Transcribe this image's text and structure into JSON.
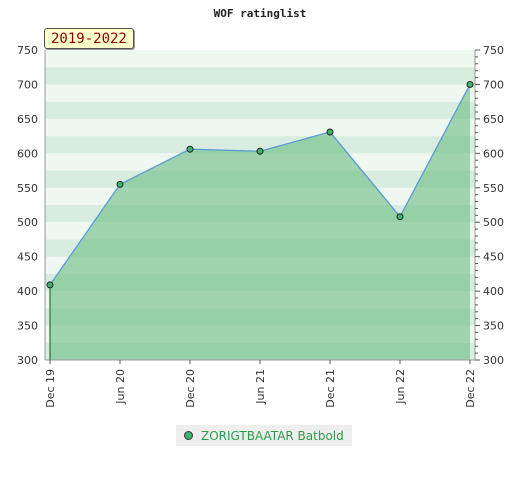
{
  "chart_data": {
    "type": "area",
    "title": "WOF ratinglist",
    "period_label": "2019-2022",
    "categories": [
      "Dec 19",
      "Jun 20",
      "Dec 20",
      "Jun 21",
      "Dec 21",
      "Jun 22",
      "Dec 22"
    ],
    "series": [
      {
        "name": "ZORIGTBAATAR Batbold",
        "values": [
          409,
          555,
          606,
          603,
          631,
          508,
          700
        ]
      }
    ],
    "ylim": [
      300,
      750
    ],
    "yticks": [
      300,
      350,
      400,
      450,
      500,
      550,
      600,
      650,
      700,
      750
    ],
    "xlabel": "",
    "ylabel": "",
    "grid": true,
    "legend_position": "bottom",
    "colors": {
      "line": "#5b9bd5",
      "fill": "#5fb878",
      "marker": "#3cb371",
      "band_light": "#eef7f0",
      "band_dark": "#d8ede0"
    }
  }
}
